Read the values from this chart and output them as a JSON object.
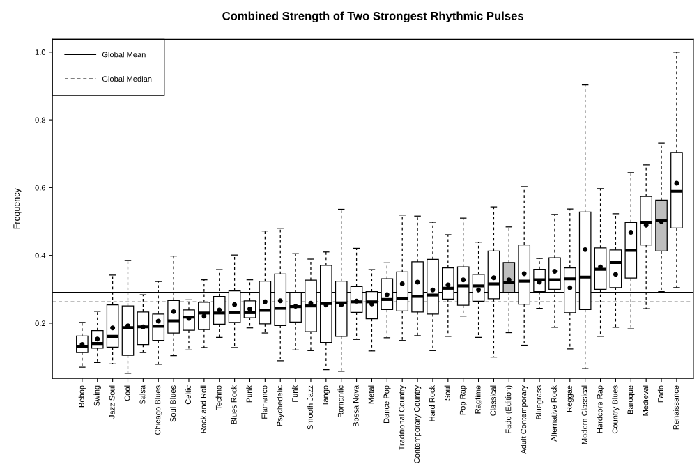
{
  "chart_data": {
    "type": "box",
    "title": "Combined Strength of Two Strongest Rhythmic Pulses",
    "ylabel": "Frequency",
    "categories": [
      "Bebop",
      "Swing",
      "Jazz Soul",
      "Cool",
      "Salsa",
      "Chicago Blues",
      "Soul Blues",
      "Celtic",
      "Rock and Roll",
      "Techno",
      "Blues Rock",
      "Punk",
      "Flamenco",
      "Psychedelic",
      "Funk",
      "Smooth Jazz",
      "Tango",
      "Romantic",
      "Bossa Nova",
      "Metal",
      "Dance Pop",
      "Traditional Country",
      "Contemporary Country",
      "Hard Rock",
      "Soul",
      "Pop Rap",
      "Ragtime",
      "Classical",
      "Fado (Edition)",
      "Adult Contemporary",
      "Bluegrass",
      "Alternative Rock",
      "Reggae",
      "Modern Classical",
      "Hardcore Rap",
      "Country Blues",
      "Baroque",
      "Medieval",
      "Fado",
      "Renaissance"
    ],
    "boxes": [
      {
        "low": 0.07,
        "q1": 0.113,
        "median": 0.132,
        "q3": 0.162,
        "high": 0.202,
        "mean": 0.137
      },
      {
        "low": 0.084,
        "q1": 0.126,
        "median": 0.14,
        "q3": 0.178,
        "high": 0.235,
        "mean": 0.153
      },
      {
        "low": 0.08,
        "q1": 0.129,
        "median": 0.161,
        "q3": 0.254,
        "high": 0.342,
        "mean": 0.186
      },
      {
        "low": 0.052,
        "q1": 0.105,
        "median": 0.187,
        "q3": 0.251,
        "high": 0.385,
        "mean": 0.192
      },
      {
        "low": 0.113,
        "q1": 0.137,
        "median": 0.189,
        "q3": 0.233,
        "high": 0.284,
        "mean": 0.189
      },
      {
        "low": 0.079,
        "q1": 0.149,
        "median": 0.191,
        "q3": 0.227,
        "high": 0.323,
        "mean": 0.206
      },
      {
        "low": 0.104,
        "q1": 0.171,
        "median": 0.207,
        "q3": 0.267,
        "high": 0.398,
        "mean": 0.234
      },
      {
        "low": 0.121,
        "q1": 0.179,
        "median": 0.218,
        "q3": 0.239,
        "high": 0.269,
        "mean": 0.214
      },
      {
        "low": 0.128,
        "q1": 0.181,
        "median": 0.23,
        "q3": 0.262,
        "high": 0.328,
        "mean": 0.221
      },
      {
        "low": 0.158,
        "q1": 0.197,
        "median": 0.23,
        "q3": 0.279,
        "high": 0.358,
        "mean": 0.239
      },
      {
        "low": 0.128,
        "q1": 0.202,
        "median": 0.231,
        "q3": 0.295,
        "high": 0.401,
        "mean": 0.255
      },
      {
        "low": 0.186,
        "q1": 0.216,
        "median": 0.231,
        "q3": 0.266,
        "high": 0.328,
        "mean": 0.242
      },
      {
        "low": 0.171,
        "q1": 0.198,
        "median": 0.238,
        "q3": 0.324,
        "high": 0.472,
        "mean": 0.263
      },
      {
        "low": 0.089,
        "q1": 0.193,
        "median": 0.244,
        "q3": 0.345,
        "high": 0.48,
        "mean": 0.266
      },
      {
        "low": 0.121,
        "q1": 0.203,
        "median": 0.249,
        "q3": 0.291,
        "high": 0.405,
        "mean": 0.25
      },
      {
        "low": 0.119,
        "q1": 0.175,
        "median": 0.251,
        "q3": 0.327,
        "high": 0.389,
        "mean": 0.259
      },
      {
        "low": 0.063,
        "q1": 0.143,
        "median": 0.258,
        "q3": 0.371,
        "high": 0.41,
        "mean": 0.254
      },
      {
        "low": 0.058,
        "q1": 0.161,
        "median": 0.26,
        "q3": 0.324,
        "high": 0.536,
        "mean": 0.254
      },
      {
        "low": 0.152,
        "q1": 0.232,
        "median": 0.263,
        "q3": 0.308,
        "high": 0.421,
        "mean": 0.265
      },
      {
        "low": 0.118,
        "q1": 0.213,
        "median": 0.263,
        "q3": 0.293,
        "high": 0.358,
        "mean": 0.257
      },
      {
        "low": 0.157,
        "q1": 0.24,
        "median": 0.27,
        "q3": 0.331,
        "high": 0.378,
        "mean": 0.284
      },
      {
        "low": 0.149,
        "q1": 0.236,
        "median": 0.273,
        "q3": 0.351,
        "high": 0.519,
        "mean": 0.316
      },
      {
        "low": 0.163,
        "q1": 0.233,
        "median": 0.279,
        "q3": 0.381,
        "high": 0.516,
        "mean": 0.321
      },
      {
        "low": 0.119,
        "q1": 0.227,
        "median": 0.283,
        "q3": 0.388,
        "high": 0.498,
        "mean": 0.298
      },
      {
        "low": 0.161,
        "q1": 0.271,
        "median": 0.303,
        "q3": 0.363,
        "high": 0.461,
        "mean": 0.313
      },
      {
        "low": 0.221,
        "q1": 0.253,
        "median": 0.31,
        "q3": 0.366,
        "high": 0.51,
        "mean": 0.328
      },
      {
        "low": 0.158,
        "q1": 0.265,
        "median": 0.31,
        "q3": 0.344,
        "high": 0.439,
        "mean": 0.298
      },
      {
        "low": 0.1,
        "q1": 0.272,
        "median": 0.316,
        "q3": 0.413,
        "high": 0.543,
        "mean": 0.334
      },
      {
        "low": 0.172,
        "q1": 0.291,
        "median": 0.32,
        "q3": 0.379,
        "high": 0.484,
        "mean": 0.328
      },
      {
        "low": 0.135,
        "q1": 0.256,
        "median": 0.324,
        "q3": 0.431,
        "high": 0.603,
        "mean": 0.346
      },
      {
        "low": 0.244,
        "q1": 0.293,
        "median": 0.328,
        "q3": 0.359,
        "high": 0.391,
        "mean": 0.321
      },
      {
        "low": 0.188,
        "q1": 0.3,
        "median": 0.328,
        "q3": 0.393,
        "high": 0.521,
        "mean": 0.353
      },
      {
        "low": 0.124,
        "q1": 0.231,
        "median": 0.331,
        "q3": 0.363,
        "high": 0.537,
        "mean": 0.304
      },
      {
        "low": 0.066,
        "q1": 0.24,
        "median": 0.336,
        "q3": 0.528,
        "high": 0.904,
        "mean": 0.417
      },
      {
        "low": 0.161,
        "q1": 0.3,
        "median": 0.359,
        "q3": 0.422,
        "high": 0.597,
        "mean": 0.366
      },
      {
        "low": 0.188,
        "q1": 0.305,
        "median": 0.379,
        "q3": 0.416,
        "high": 0.523,
        "mean": 0.344
      },
      {
        "low": 0.183,
        "q1": 0.333,
        "median": 0.415,
        "q3": 0.497,
        "high": 0.644,
        "mean": 0.468
      },
      {
        "low": 0.243,
        "q1": 0.431,
        "median": 0.498,
        "q3": 0.574,
        "high": 0.667,
        "mean": 0.489
      },
      {
        "low": 0.293,
        "q1": 0.413,
        "median": 0.504,
        "q3": 0.563,
        "high": 0.732,
        "mean": 0.5
      },
      {
        "low": 0.305,
        "q1": 0.481,
        "median": 0.589,
        "q3": 0.704,
        "high": 1.0,
        "mean": 0.613
      }
    ],
    "colors": [
      "#ffffff",
      "#ffffff",
      "#ffffff",
      "#ffffff",
      "#ffffff",
      "#ffffff",
      "#ffffff",
      "#ffffff",
      "#ffffff",
      "#ffffff",
      "#ffffff",
      "#ffffff",
      "#ffffff",
      "#ffffff",
      "#ffffff",
      "#ffffff",
      "#ffffff",
      "#ffffff",
      "#ffffff",
      "#ffffff",
      "#ffffff",
      "#ffffff",
      "#ffffff",
      "#ffffff",
      "#ffffff",
      "#ffffff",
      "#ffffff",
      "#ffffff",
      "#bebebe",
      "#ffffff",
      "#ffffff",
      "#ffffff",
      "#ffffff",
      "#ffffff",
      "#ffffff",
      "#ffffff",
      "#ffffff",
      "#ffffff",
      "#bebebe",
      "#ffffff"
    ],
    "ylim": [
      0.037,
      1.038
    ],
    "yticks": [
      0.2,
      0.4,
      0.6,
      0.8,
      {
        "value": 1,
        "label": "1.0"
      }
    ],
    "ref_lines": [
      {
        "axis": "y",
        "value": 0.291,
        "label": "Global Mean",
        "color": "#000000",
        "line_style": "solid"
      },
      {
        "axis": "y",
        "value": 0.263,
        "label": "Global Median",
        "color": "#000000",
        "line_style": "dashed"
      }
    ],
    "legend": "top left",
    "grid": false
  }
}
